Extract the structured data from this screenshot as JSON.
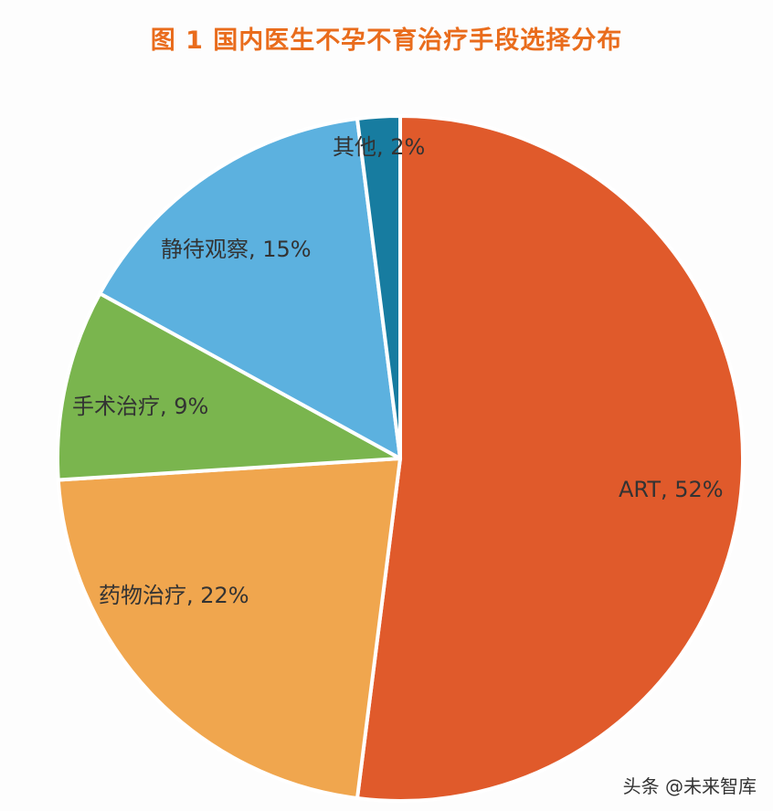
{
  "title": "图 1 国内医生不孕不育治疗手段选择分布",
  "watermark": "头条 @未来智库",
  "chart_data": {
    "type": "pie",
    "title": "图 1 国内医生不孕不育治疗手段选择分布",
    "start_angle_deg": 0,
    "direction": "clockwise",
    "slices": [
      {
        "label": "ART",
        "value": 52,
        "display": "ART, 52%",
        "color": "#e05a2b"
      },
      {
        "label": "药物治疗",
        "value": 22,
        "display": "药物治疗, 22%",
        "color": "#f0a64e"
      },
      {
        "label": "手术治疗",
        "value": 9,
        "display": "手术治疗, 9%",
        "color": "#7ab54e"
      },
      {
        "label": "静待观察",
        "value": 15,
        "display": "静待观察, 15%",
        "color": "#5cb1df"
      },
      {
        "label": "其他",
        "value": 2,
        "display": "其他, 2%",
        "color": "#177ca0"
      }
    ],
    "categories": [
      "ART",
      "药物治疗",
      "手术治疗",
      "静待观察",
      "其他"
    ],
    "values": [
      52,
      22,
      9,
      15,
      2
    ],
    "unit": "%",
    "legend": "none (data labels on slices)"
  }
}
